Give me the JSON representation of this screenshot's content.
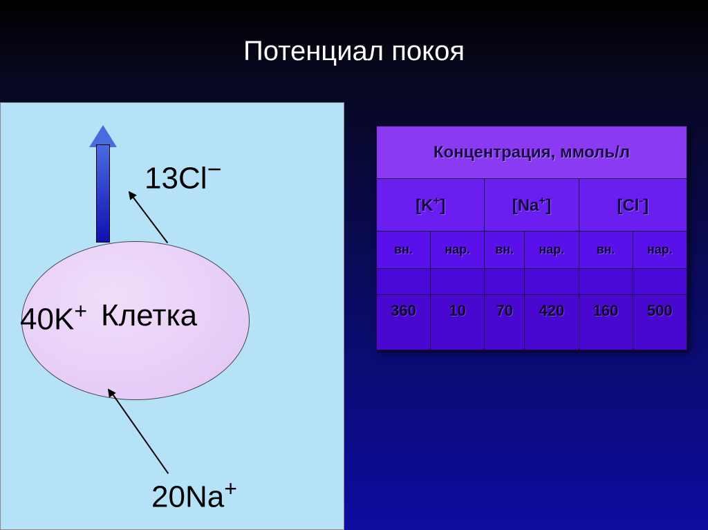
{
  "title": "Потенциал покоя",
  "diagram": {
    "panel_bg": "#b5e2f7",
    "cell_fill": "#e2c4f5",
    "cell_label": "Клетка",
    "ion_cl": {
      "coeff": "13",
      "symbol": "Cl",
      "charge": "−"
    },
    "ion_k": {
      "coeff": "40",
      "symbol": "K",
      "charge": "+"
    },
    "ion_na": {
      "coeff": "20",
      "symbol": "Na",
      "charge": "+"
    },
    "arrow_color": "#2a3ad0"
  },
  "table": {
    "header": "Концентрация, ммоль/л",
    "ions": [
      {
        "symbol": "K",
        "charge": "+"
      },
      {
        "symbol": "Na",
        "charge": "+"
      },
      {
        "symbol": "Cl",
        "charge": "-"
      }
    ],
    "sub": {
      "in": "вн.",
      "out": "нар."
    },
    "rows": [
      [
        360,
        10,
        70,
        420,
        160,
        500
      ]
    ],
    "colors": {
      "header_bg": "#8a3af0",
      "ion_bg": "#6a1ef0",
      "sub_bg": "#5a10e8",
      "val_bg": "#4808d0",
      "text": "#140840",
      "border": "#1a0a3a"
    }
  }
}
